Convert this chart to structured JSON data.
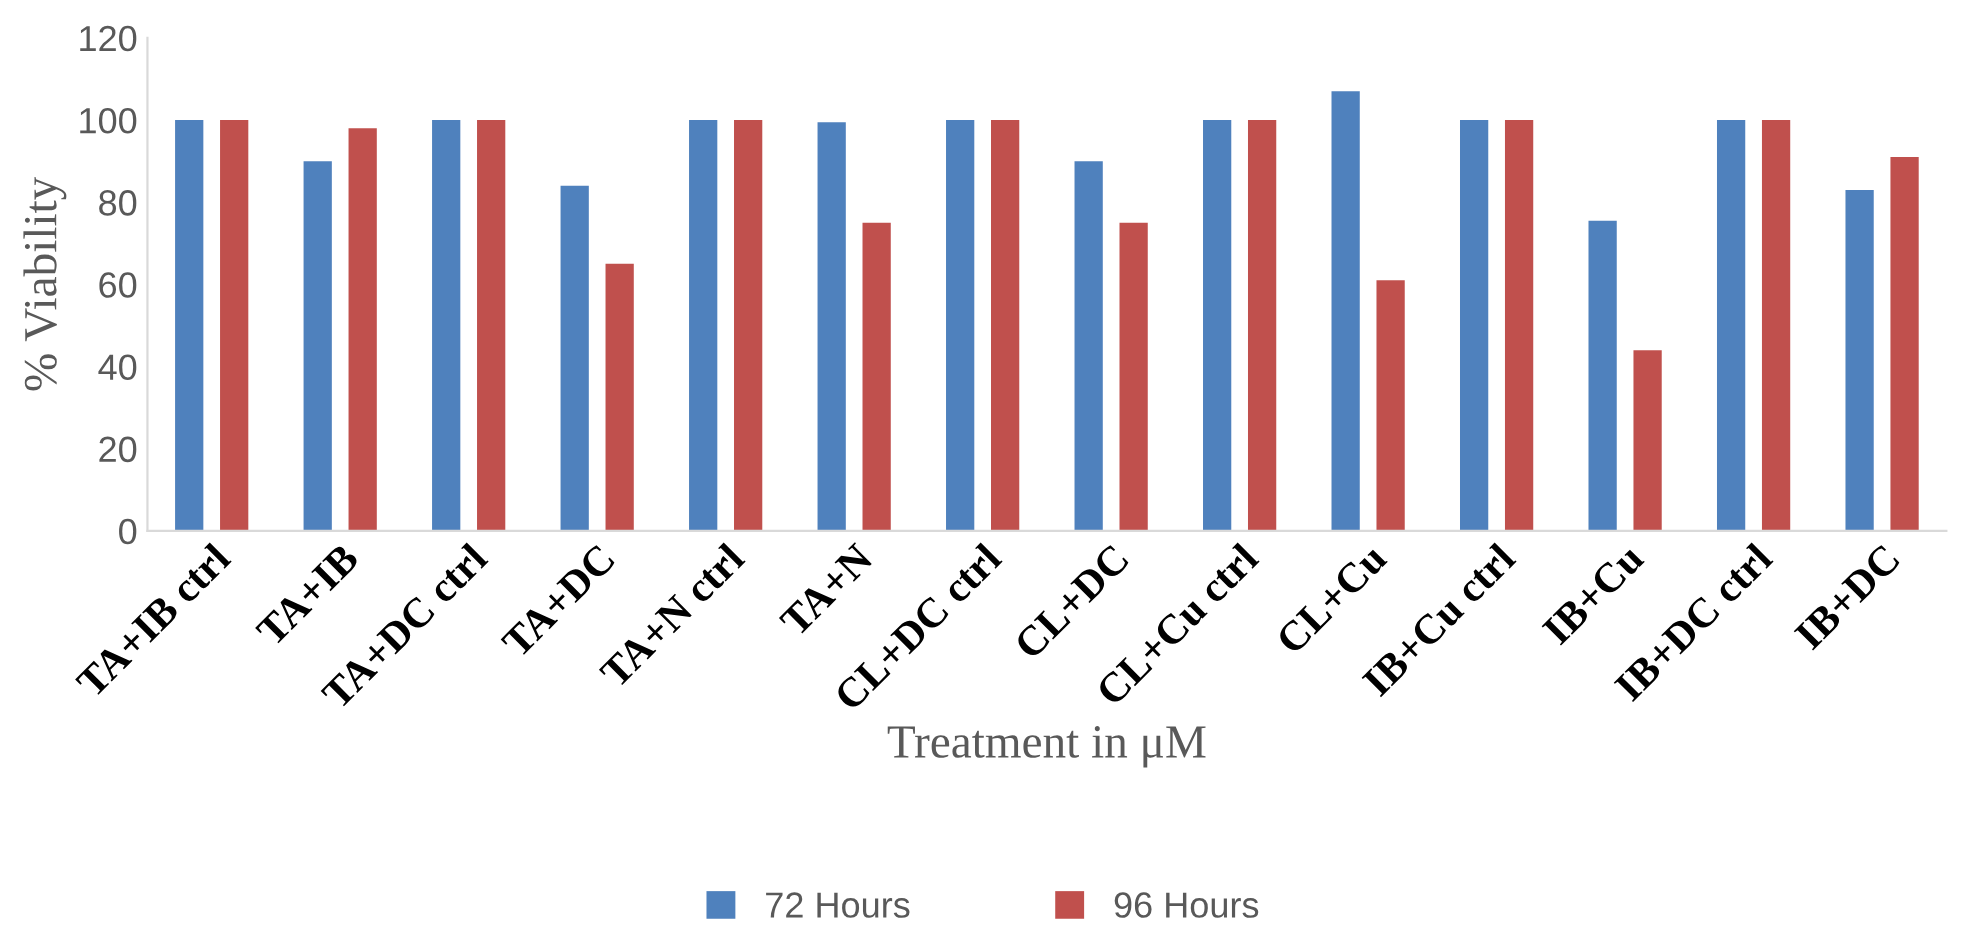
{
  "chart_data": {
    "type": "bar",
    "xlabel": "Treatment in μM",
    "ylabel": "% Viability",
    "categories": [
      "TA+IB ctrl",
      "TA+IB",
      "TA+DC ctrl",
      "TA+DC",
      "TA+N ctrl",
      "TA+N",
      "CL+DC ctrl",
      "CL+DC",
      "CL+Cu ctrl",
      "CL+Cu",
      "IB+Cu ctrl",
      "IB+Cu",
      "IB+DC ctrl",
      "IB+DC"
    ],
    "series": [
      {
        "name": "72 Hours",
        "color": "#4f81bd",
        "values": [
          100,
          90,
          100,
          84,
          100,
          99.5,
          100,
          90,
          100,
          107,
          100,
          75.5,
          100,
          83
        ]
      },
      {
        "name": "96 Hours",
        "color": "#c0504d",
        "values": [
          100,
          98,
          100,
          65,
          100,
          75,
          100,
          75,
          100,
          61,
          100,
          44,
          100,
          91
        ]
      }
    ],
    "ylim": [
      0,
      120
    ],
    "yticks": [
      0,
      20,
      40,
      60,
      80,
      100,
      120
    ],
    "grid": false,
    "legend": "bottom"
  }
}
